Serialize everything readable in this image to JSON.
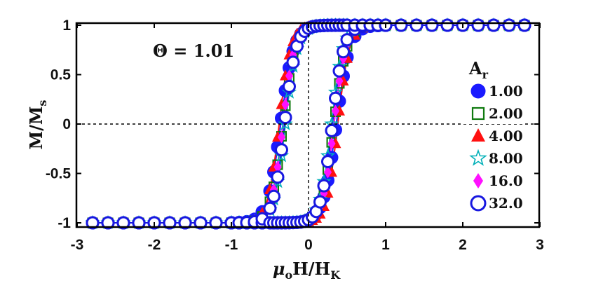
{
  "chart_data": {
    "type": "scatter",
    "xlabel": {
      "base": "μ",
      "base_sub": "o",
      "mid": "H/H",
      "mid_sub": "K"
    },
    "ylabel": {
      "base": "M/M",
      "sub": "s"
    },
    "annotation": "Θ = 1.01",
    "xlim": [
      -3,
      3
    ],
    "ylim": [
      -1.05,
      1.05
    ],
    "xticks": [
      -3,
      -2,
      -1,
      0,
      1,
      2,
      3
    ],
    "yticks": [
      -1,
      -0.5,
      0,
      0.5,
      1
    ],
    "xtick_labels": [
      "-3",
      "-2",
      "-1",
      "0",
      "1",
      "2",
      "3"
    ],
    "ytick_labels": [
      "-1",
      "-0.5",
      "0",
      "0.5",
      "1"
    ],
    "reference_lines": [
      "x=0 dashed",
      "y=0 dashed"
    ],
    "grid": false,
    "legend": {
      "title_base": "A",
      "title_sub": "r",
      "placement": "right"
    },
    "series": [
      {
        "name": "1.00",
        "marker": "circle-filled",
        "color": "#1a1aff",
        "coercive_field": 0.36,
        "switching_width": 0.17
      },
      {
        "name": "2.00",
        "marker": "square-open",
        "color": "#0f7a0f",
        "coercive_field": 0.33,
        "switching_width": 0.16
      },
      {
        "name": "4.00",
        "marker": "triangle-filled",
        "color": "#ff1010",
        "coercive_field": 0.38,
        "switching_width": 0.15
      },
      {
        "name": "8.00",
        "marker": "star-open",
        "color": "#00b0b8",
        "coercive_field": 0.3,
        "switching_width": 0.15
      },
      {
        "name": "16.0",
        "marker": "diamond-filled",
        "color": "#ff10ff",
        "coercive_field": 0.33,
        "switching_width": 0.15
      },
      {
        "name": "32.0",
        "marker": "circle-open",
        "color": "#1818e0",
        "coercive_field": 0.31,
        "switching_width": 0.15
      }
    ],
    "x_samples": [
      -2.8,
      -2.6,
      -2.4,
      -2.2,
      -2.0,
      -1.8,
      -1.6,
      -1.4,
      -1.2,
      -1.0,
      -0.9,
      -0.8,
      -0.7,
      -0.6,
      -0.5,
      -0.45,
      -0.4,
      -0.35,
      -0.3,
      -0.25,
      -0.2,
      -0.15,
      -0.1,
      -0.05,
      0,
      0.05,
      0.1,
      0.15,
      0.2,
      0.25,
      0.3,
      0.35,
      0.4,
      0.45,
      0.5,
      0.6,
      0.7,
      0.8,
      0.9,
      1.0,
      1.2,
      1.4,
      1.6,
      1.8,
      2.0,
      2.2,
      2.4,
      2.6,
      2.8
    ]
  }
}
